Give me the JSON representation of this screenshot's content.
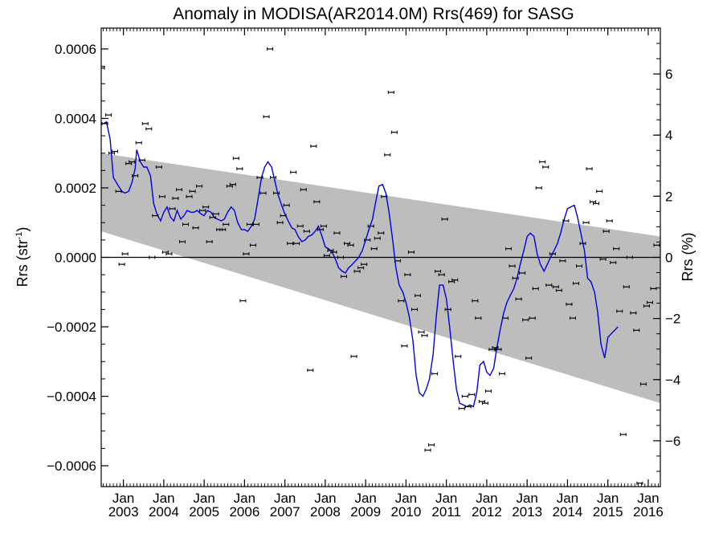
{
  "chart_data": {
    "type": "scatter",
    "title": "Anomaly in MODISA(AR2014.0M) Rrs(469) for SASG",
    "ylabel_left": "Rrs (str",
    "ylabel_left_sup": "-1",
    "ylabel_left_close": ")",
    "ylabel_right": "Rrs (%)",
    "xlim": [
      2002.45,
      2016.3
    ],
    "ylim": [
      -0.00066,
      0.00066
    ],
    "ylim_right_percent": [
      -7.5,
      7.5
    ],
    "y_ticks": [
      {
        "value": 0.0006,
        "label": "0.0006"
      },
      {
        "value": 0.0004,
        "label": "0.0004"
      },
      {
        "value": 0.0002,
        "label": "0.0002"
      },
      {
        "value": 0.0,
        "label": "0.0000"
      },
      {
        "value": -0.0002,
        "label": "−0.0002"
      },
      {
        "value": -0.0004,
        "label": "−0.0004"
      },
      {
        "value": -0.0006,
        "label": "−0.0006"
      }
    ],
    "y_right_ticks": [
      {
        "value": 6,
        "label": "6"
      },
      {
        "value": 4,
        "label": "4"
      },
      {
        "value": 2,
        "label": "2"
      },
      {
        "value": 0,
        "label": "0"
      },
      {
        "value": -2,
        "label": "−2"
      },
      {
        "value": -4,
        "label": "−4"
      },
      {
        "value": -6,
        "label": "−6"
      }
    ],
    "x_ticks": [
      {
        "value": 2003.0,
        "month": "Jan",
        "year": "2003"
      },
      {
        "value": 2004.0,
        "month": "Jan",
        "year": "2004"
      },
      {
        "value": 2005.0,
        "month": "Jan",
        "year": "2005"
      },
      {
        "value": 2006.0,
        "month": "Jan",
        "year": "2006"
      },
      {
        "value": 2007.0,
        "month": "Jan",
        "year": "2007"
      },
      {
        "value": 2008.0,
        "month": "Jan",
        "year": "2008"
      },
      {
        "value": 2009.0,
        "month": "Jan",
        "year": "2009"
      },
      {
        "value": 2010.0,
        "month": "Jan",
        "year": "2010"
      },
      {
        "value": 2011.0,
        "month": "Jan",
        "year": "2011"
      },
      {
        "value": 2012.0,
        "month": "Jan",
        "year": "2012"
      },
      {
        "value": 2013.0,
        "month": "Jan",
        "year": "2013"
      },
      {
        "value": 2014.0,
        "month": "Jan",
        "year": "2014"
      },
      {
        "value": 2015.0,
        "month": "Jan",
        "year": "2015"
      },
      {
        "value": 2016.0,
        "month": "Jan",
        "year": "2016"
      }
    ],
    "trend_band": {
      "start": {
        "x": 2002.45,
        "upper": 0.0003,
        "lower": 7.5e-05
      },
      "end": {
        "x": 2016.3,
        "upper": 6e-05,
        "lower": -0.00042
      }
    },
    "zero_line": 0.0,
    "colors": {
      "band": "#bdbdbd",
      "smooth_line": "#0000e0",
      "points": "#000000",
      "zero_line": "#000000"
    },
    "points": [
      [
        2002.46,
        0.000545
      ],
      [
        2002.54,
        0.000385
      ],
      [
        2002.63,
        0.00041
      ],
      [
        2002.71,
        0.0003
      ],
      [
        2002.79,
        0.000305
      ],
      [
        2002.88,
        0.00019
      ],
      [
        2002.96,
        -2e-05
      ],
      [
        2003.04,
        1e-05
      ],
      [
        2003.13,
        0.00027
      ],
      [
        2003.21,
        0.000275
      ],
      [
        2003.29,
        0.000235
      ],
      [
        2003.38,
        0.00033
      ],
      [
        2003.46,
        0.00028
      ],
      [
        2003.54,
        0.000385
      ],
      [
        2003.63,
        0.00037
      ],
      [
        2003.71,
        0.0
      ],
      [
        2003.79,
        0.00012
      ],
      [
        2003.88,
        0.00026
      ],
      [
        2003.96,
        0.000175
      ],
      [
        2004.04,
        1.5e-05
      ],
      [
        2004.13,
        1e-05
      ],
      [
        2004.21,
        0.00014
      ],
      [
        2004.29,
        0.00017
      ],
      [
        2004.38,
        0.000195
      ],
      [
        2004.46,
        4.5e-05
      ],
      [
        2004.54,
        9.5e-05
      ],
      [
        2004.63,
        0.000175
      ],
      [
        2004.71,
        0.00019
      ],
      [
        2004.79,
        8.5e-05
      ],
      [
        2004.88,
        0.000205
      ],
      [
        2004.96,
        0.000135
      ],
      [
        2005.04,
        0.000145
      ],
      [
        2005.13,
        4.5e-05
      ],
      [
        2005.21,
        0.000115
      ],
      [
        2005.29,
        0.000125
      ],
      [
        2005.38,
        8e-05
      ],
      [
        2005.46,
        8e-05
      ],
      [
        2005.54,
        9.5e-05
      ],
      [
        2005.63,
        0.000205
      ],
      [
        2005.71,
        0.00021
      ],
      [
        2005.79,
        0.000285
      ],
      [
        2005.88,
        0.000255
      ],
      [
        2005.96,
        -0.000125
      ],
      [
        2006.04,
        1e-05
      ],
      [
        2006.13,
        9.5e-05
      ],
      [
        2006.21,
        3.5e-05
      ],
      [
        2006.29,
        9.5e-05
      ],
      [
        2006.38,
        0.00023
      ],
      [
        2006.46,
        0.000185
      ],
      [
        2006.54,
        0.000405
      ],
      [
        2006.63,
        0.0006
      ],
      [
        2006.71,
        0.00023
      ],
      [
        2006.79,
        0.000185
      ],
      [
        2006.88,
        0.0001
      ],
      [
        2006.96,
        0.00012
      ],
      [
        2007.04,
        0.00015
      ],
      [
        2007.13,
        4e-05
      ],
      [
        2007.21,
        0.000245
      ],
      [
        2007.29,
        4e-05
      ],
      [
        2007.38,
        9e-05
      ],
      [
        2007.46,
        0.000195
      ],
      [
        2007.54,
        7.5e-05
      ],
      [
        2007.63,
        -0.000325
      ],
      [
        2007.71,
        0.00032
      ],
      [
        2007.79,
        0.00016
      ],
      [
        2007.88,
        8e-05
      ],
      [
        2007.96,
        9e-05
      ],
      [
        2008.04,
        5e-06
      ],
      [
        2008.13,
        2e-05
      ],
      [
        2008.21,
        1.5e-05
      ],
      [
        2008.29,
        7e-05
      ],
      [
        2008.38,
        0.0
      ],
      [
        2008.46,
        -5.5e-05
      ],
      [
        2008.54,
        4e-05
      ],
      [
        2008.63,
        3.5e-05
      ],
      [
        2008.71,
        -0.000285
      ],
      [
        2008.79,
        -4e-05
      ],
      [
        2008.88,
        -3e-05
      ],
      [
        2008.96,
        -2e-05
      ],
      [
        2009.04,
        5e-05
      ],
      [
        2009.13,
        9e-05
      ],
      [
        2009.21,
        2.5e-05
      ],
      [
        2009.29,
        5.5e-05
      ],
      [
        2009.38,
        7e-05
      ],
      [
        2009.46,
        0.000175
      ],
      [
        2009.54,
        0.000295
      ],
      [
        2009.63,
        0.000475
      ],
      [
        2009.71,
        0.00036
      ],
      [
        2009.79,
        -1e-05
      ],
      [
        2009.88,
        -0.000125
      ],
      [
        2009.96,
        -0.000255
      ],
      [
        2010.04,
        -5e-05
      ],
      [
        2010.13,
        1.5e-05
      ],
      [
        2010.21,
        -0.00015
      ],
      [
        2010.29,
        -0.00011
      ],
      [
        2010.38,
        -0.000215
      ],
      [
        2010.46,
        -0.000225
      ],
      [
        2010.54,
        -0.000555
      ],
      [
        2010.63,
        -0.00054
      ],
      [
        2010.71,
        -0.000335
      ],
      [
        2010.79,
        -4e-05
      ],
      [
        2010.88,
        -5e-05
      ],
      [
        2010.96,
        0.00011
      ],
      [
        2011.04,
        -0.00015
      ],
      [
        2011.13,
        -7e-05
      ],
      [
        2011.21,
        -6.5e-05
      ],
      [
        2011.29,
        -0.000285
      ],
      [
        2011.38,
        -0.000435
      ],
      [
        2011.46,
        -0.0004
      ],
      [
        2011.54,
        -0.00043
      ],
      [
        2011.63,
        -0.000395
      ],
      [
        2011.71,
        -0.000125
      ],
      [
        2011.79,
        -0.000175
      ],
      [
        2011.88,
        -0.000415
      ],
      [
        2011.96,
        -0.00042
      ],
      [
        2012.04,
        -0.000385
      ],
      [
        2012.13,
        -0.000265
      ],
      [
        2012.21,
        -0.00026
      ],
      [
        2012.29,
        -0.000265
      ],
      [
        2012.38,
        -0.000335
      ],
      [
        2012.46,
        -0.000175
      ],
      [
        2012.54,
        2.5e-05
      ],
      [
        2012.63,
        -2.5e-05
      ],
      [
        2012.71,
        -6e-05
      ],
      [
        2012.79,
        -0.00012
      ],
      [
        2012.88,
        -4.5e-05
      ],
      [
        2012.96,
        -0.00018
      ],
      [
        2013.04,
        -0.00029
      ],
      [
        2013.13,
        -0.000175
      ],
      [
        2013.21,
        -9e-05
      ],
      [
        2013.29,
        0.0002
      ],
      [
        2013.38,
        0.000275
      ],
      [
        2013.46,
        0.00026
      ],
      [
        2013.54,
        -8e-05
      ],
      [
        2013.63,
        1e-05
      ],
      [
        2013.71,
        -8.5e-05
      ],
      [
        2013.79,
        -9.5e-05
      ],
      [
        2013.88,
        -1e-05
      ],
      [
        2013.96,
        0.000105
      ],
      [
        2014.04,
        -0.000135
      ],
      [
        2014.13,
        -0.000175
      ],
      [
        2014.21,
        -7.5e-05
      ],
      [
        2014.29,
        -2.5e-05
      ],
      [
        2014.38,
        4e-05
      ],
      [
        2014.46,
        0.0001
      ],
      [
        2014.54,
        0.000255
      ],
      [
        2014.63,
        0.00016
      ],
      [
        2014.71,
        0.000155
      ],
      [
        2014.79,
        0.00019
      ],
      [
        2014.88,
        -5e-06
      ],
      [
        2014.96,
        7.5e-05
      ],
      [
        2015.04,
        0.000105
      ],
      [
        2015.13,
        -1.5e-05
      ],
      [
        2015.21,
        2.5e-05
      ],
      [
        2015.29,
        -0.000155
      ],
      [
        2015.38,
        -0.00051
      ],
      [
        2015.46,
        -8.5e-05
      ],
      [
        2015.54,
        0.0
      ],
      [
        2015.63,
        -0.00016
      ],
      [
        2015.71,
        -0.00021
      ],
      [
        2015.79,
        -0.00065
      ],
      [
        2015.88,
        -0.000365
      ],
      [
        2015.96,
        -0.00014
      ],
      [
        2016.04,
        -0.00013
      ],
      [
        2016.13,
        -9e-05
      ],
      [
        2016.21,
        3.5e-05
      ]
    ],
    "smooth_line": [
      [
        2002.5,
        0.000385
      ],
      [
        2002.58,
        0.00039
      ],
      [
        2002.67,
        0.00034
      ],
      [
        2002.75,
        0.00023
      ],
      [
        2002.88,
        0.000205
      ],
      [
        2002.96,
        0.00019
      ],
      [
        2003.04,
        0.000185
      ],
      [
        2003.13,
        0.00019
      ],
      [
        2003.21,
        0.000215
      ],
      [
        2003.29,
        0.000255
      ],
      [
        2003.33,
        0.00031
      ],
      [
        2003.42,
        0.000275
      ],
      [
        2003.5,
        0.00026
      ],
      [
        2003.58,
        0.00026
      ],
      [
        2003.67,
        0.000235
      ],
      [
        2003.75,
        0.000155
      ],
      [
        2003.83,
        0.000125
      ],
      [
        2003.92,
        0.000105
      ],
      [
        2004.0,
        0.00013
      ],
      [
        2004.08,
        0.000145
      ],
      [
        2004.17,
        0.000115
      ],
      [
        2004.25,
        0.000105
      ],
      [
        2004.33,
        0.000135
      ],
      [
        2004.42,
        0.00011
      ],
      [
        2004.5,
        0.00012
      ],
      [
        2004.58,
        0.000135
      ],
      [
        2004.67,
        0.00013
      ],
      [
        2004.75,
        0.00013
      ],
      [
        2004.83,
        0.000135
      ],
      [
        2004.92,
        0.000125
      ],
      [
        2005.0,
        0.00012
      ],
      [
        2005.08,
        0.000135
      ],
      [
        2005.17,
        0.00013
      ],
      [
        2005.25,
        0.000115
      ],
      [
        2005.33,
        0.00011
      ],
      [
        2005.42,
        0.000105
      ],
      [
        2005.5,
        0.00011
      ],
      [
        2005.58,
        0.00013
      ],
      [
        2005.67,
        0.000145
      ],
      [
        2005.75,
        0.000135
      ],
      [
        2005.83,
        0.0001
      ],
      [
        2005.92,
        8e-05
      ],
      [
        2006.0,
        8e-05
      ],
      [
        2006.08,
        7.5e-05
      ],
      [
        2006.17,
        9e-05
      ],
      [
        2006.25,
        0.00011
      ],
      [
        2006.33,
        0.000165
      ],
      [
        2006.42,
        0.00023
      ],
      [
        2006.5,
        0.00026
      ],
      [
        2006.58,
        0.000275
      ],
      [
        2006.67,
        0.00026
      ],
      [
        2006.75,
        0.00022
      ],
      [
        2006.83,
        0.00018
      ],
      [
        2006.92,
        0.00015
      ],
      [
        2007.0,
        0.000125
      ],
      [
        2007.08,
        0.000105
      ],
      [
        2007.17,
        8.5e-05
      ],
      [
        2007.25,
        8e-05
      ],
      [
        2007.33,
        6e-05
      ],
      [
        2007.42,
        4.5e-05
      ],
      [
        2007.5,
        5e-05
      ],
      [
        2007.58,
        6e-05
      ],
      [
        2007.67,
        6.5e-05
      ],
      [
        2007.75,
        7.5e-05
      ],
      [
        2007.83,
        9e-05
      ],
      [
        2007.92,
        6e-05
      ],
      [
        2008.0,
        3e-05
      ],
      [
        2008.08,
        2.5e-05
      ],
      [
        2008.17,
        1.5e-05
      ],
      [
        2008.25,
        -5e-06
      ],
      [
        2008.33,
        -3e-05
      ],
      [
        2008.42,
        -4e-05
      ],
      [
        2008.5,
        -4.5e-05
      ],
      [
        2008.58,
        -3e-05
      ],
      [
        2008.67,
        -2e-05
      ],
      [
        2008.75,
        -1e-05
      ],
      [
        2008.83,
        0.0
      ],
      [
        2008.92,
        2e-05
      ],
      [
        2009.0,
        5e-05
      ],
      [
        2009.08,
        8e-05
      ],
      [
        2009.17,
        0.00011
      ],
      [
        2009.25,
        0.00016
      ],
      [
        2009.33,
        0.000205
      ],
      [
        2009.42,
        0.00021
      ],
      [
        2009.5,
        0.000185
      ],
      [
        2009.58,
        0.00013
      ],
      [
        2009.67,
        5e-05
      ],
      [
        2009.75,
        -3e-05
      ],
      [
        2009.83,
        -8e-05
      ],
      [
        2009.92,
        -0.0001
      ],
      [
        2010.0,
        -0.00013
      ],
      [
        2010.08,
        -0.00017
      ],
      [
        2010.17,
        -0.00024
      ],
      [
        2010.25,
        -0.00034
      ],
      [
        2010.33,
        -0.00039
      ],
      [
        2010.42,
        -0.0004
      ],
      [
        2010.5,
        -0.00038
      ],
      [
        2010.58,
        -0.00035
      ],
      [
        2010.67,
        -0.00028
      ],
      [
        2010.75,
        -0.00017
      ],
      [
        2010.83,
        -8e-05
      ],
      [
        2010.92,
        -8e-05
      ],
      [
        2011.0,
        -0.00012
      ],
      [
        2011.08,
        -0.0002
      ],
      [
        2011.17,
        -0.0003
      ],
      [
        2011.25,
        -0.00038
      ],
      [
        2011.33,
        -0.00042
      ],
      [
        2011.42,
        -0.000425
      ],
      [
        2011.5,
        -0.00043
      ],
      [
        2011.58,
        -0.000425
      ],
      [
        2011.67,
        -0.00043
      ],
      [
        2011.75,
        -0.00039
      ],
      [
        2011.83,
        -0.00031
      ],
      [
        2011.92,
        -0.0003
      ],
      [
        2012.0,
        -0.00033
      ],
      [
        2012.08,
        -0.00034
      ],
      [
        2012.17,
        -0.00032
      ],
      [
        2012.25,
        -0.00026
      ],
      [
        2012.33,
        -0.00021
      ],
      [
        2012.42,
        -0.00016
      ],
      [
        2012.5,
        -0.00013
      ],
      [
        2012.58,
        -0.00011
      ],
      [
        2012.67,
        -9e-05
      ],
      [
        2012.75,
        -6e-05
      ],
      [
        2012.83,
        -2e-05
      ],
      [
        2012.92,
        2e-05
      ],
      [
        2013.0,
        6e-05
      ],
      [
        2013.08,
        7e-05
      ],
      [
        2013.17,
        6e-05
      ],
      [
        2013.25,
        1e-05
      ],
      [
        2013.33,
        -2e-05
      ],
      [
        2013.42,
        -4e-05
      ],
      [
        2013.5,
        -2e-05
      ],
      [
        2013.58,
        0.0
      ],
      [
        2013.67,
        2e-05
      ],
      [
        2013.75,
        4e-05
      ],
      [
        2013.83,
        7e-05
      ],
      [
        2013.92,
        0.00011
      ],
      [
        2014.0,
        0.00014
      ],
      [
        2014.08,
        0.000145
      ],
      [
        2014.17,
        0.00015
      ],
      [
        2014.25,
        0.000115
      ],
      [
        2014.33,
        7e-05
      ],
      [
        2014.42,
        2e-05
      ],
      [
        2014.5,
        -6e-05
      ],
      [
        2014.58,
        -7e-05
      ],
      [
        2014.67,
        -0.0001
      ],
      [
        2014.75,
        -0.00016
      ],
      [
        2014.83,
        -0.00025
      ],
      [
        2014.92,
        -0.00029
      ],
      [
        2015.0,
        -0.00023
      ],
      [
        2015.08,
        -0.00022
      ],
      [
        2015.17,
        -0.00021
      ],
      [
        2015.25,
        -0.0002
      ]
    ]
  }
}
